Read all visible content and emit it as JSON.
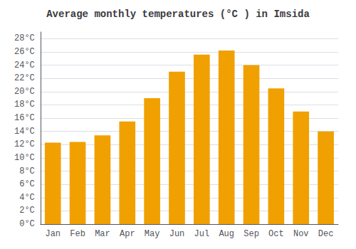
{
  "chart_data": {
    "type": "bar",
    "title": "Average monthly temperatures (°C ) in Imsida",
    "categories": [
      "Jan",
      "Feb",
      "Mar",
      "Apr",
      "May",
      "Jun",
      "Jul",
      "Aug",
      "Sep",
      "Oct",
      "Nov",
      "Dec"
    ],
    "values": [
      12.3,
      12.4,
      13.4,
      15.5,
      19.0,
      23.0,
      25.6,
      26.2,
      24.0,
      20.5,
      17.0,
      14.0
    ],
    "color": "#F0A000",
    "ylim": [
      0,
      29
    ],
    "yticks": [
      {
        "value": 0,
        "label": "0°C"
      },
      {
        "value": 2,
        "label": "2°C"
      },
      {
        "value": 4,
        "label": "4°C"
      },
      {
        "value": 6,
        "label": "6°C"
      },
      {
        "value": 8,
        "label": "8°C"
      },
      {
        "value": 10,
        "label": "10°C"
      },
      {
        "value": 12,
        "label": "12°C"
      },
      {
        "value": 14,
        "label": "14°C"
      },
      {
        "value": 16,
        "label": "16°C"
      },
      {
        "value": 18,
        "label": "18°C"
      },
      {
        "value": 20,
        "label": "20°C"
      },
      {
        "value": 22,
        "label": "22°C"
      },
      {
        "value": 24,
        "label": "24°C"
      },
      {
        "value": 26,
        "label": "26°C"
      },
      {
        "value": 28,
        "label": "28°C"
      }
    ],
    "grid": true
  }
}
